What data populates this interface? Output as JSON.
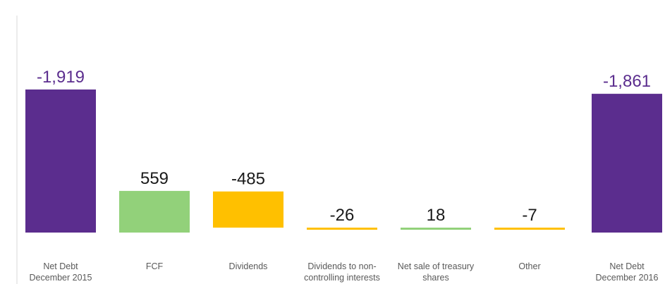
{
  "chart_data": {
    "type": "bar",
    "subtype": "waterfall",
    "title": "",
    "xlabel": "",
    "ylabel": "",
    "categories": [
      [
        "Net Debt",
        "December 2015"
      ],
      [
        "FCF"
      ],
      [
        "Dividends"
      ],
      [
        "Dividends to non-",
        "controlling interests"
      ],
      [
        "Net sale of treasury",
        "shares"
      ],
      [
        "Other"
      ],
      [
        "Net Debt",
        "December 2016"
      ]
    ],
    "values": [
      -1919,
      559,
      -485,
      -26,
      18,
      -7,
      -1861
    ],
    "labels": [
      "-1,919",
      "559",
      "-485",
      "-26",
      "18",
      "-7",
      "-1,861"
    ],
    "kinds": [
      "total",
      "increase",
      "decrease",
      "decrease",
      "increase",
      "decrease",
      "total"
    ],
    "grid": false,
    "legend": "none"
  },
  "colors": {
    "total": "#5b2d8e",
    "increase": "#92d17a",
    "decrease": "#ffc000",
    "total_label": "#5b2d8e",
    "delta_label": "#1a1a1a",
    "category_label": "#595959",
    "axis": "#d9d9d9"
  }
}
